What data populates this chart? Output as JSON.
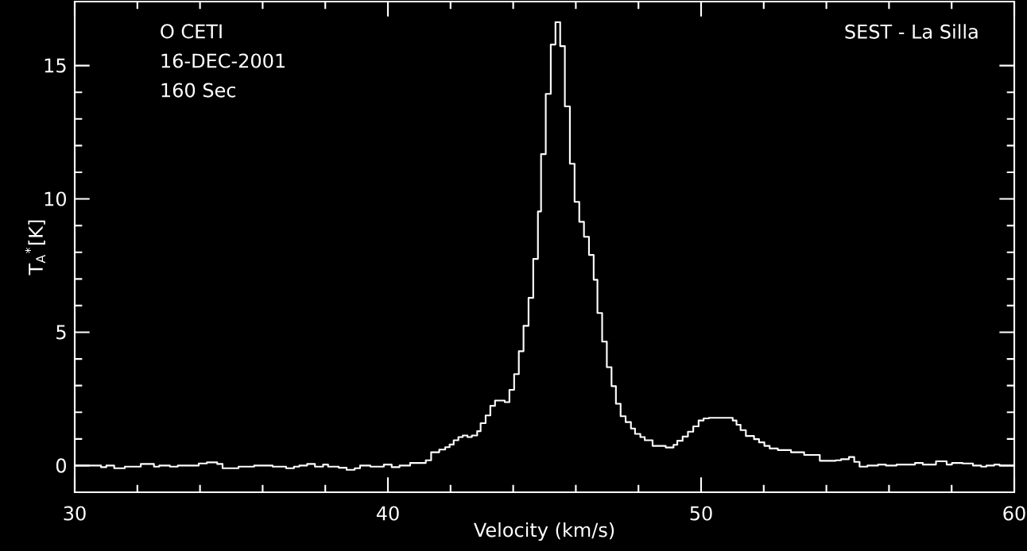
{
  "chart_data": {
    "type": "step",
    "xlabel": "Velocity (km/s)",
    "ylabel": "T$_{A}$$^{*}$[K]",
    "annotations": [
      "O CETI",
      "16-DEC-2001",
      "160 Sec",
      "SEST - La Silla"
    ],
    "xlim": [
      30,
      60
    ],
    "ylim": [
      -1,
      17.4
    ],
    "xticks": [
      30,
      40,
      50,
      60
    ],
    "yticks": [
      0,
      5,
      10,
      15
    ],
    "series": [
      {
        "color": "#ffffff",
        "x": [
          30.0,
          30.84,
          31.01,
          31.26,
          31.6,
          32.11,
          32.53,
          32.7,
          33.04,
          33.29,
          33.96,
          34.22,
          34.55,
          34.72,
          35.23,
          35.73,
          36.32,
          36.75,
          37.0,
          37.17,
          37.42,
          37.67,
          37.93,
          38.09,
          38.43,
          38.68,
          38.94,
          39.11,
          39.44,
          39.87,
          40.12,
          40.37,
          40.71,
          41.21,
          41.38,
          41.64,
          41.83,
          41.97,
          42.1,
          42.25,
          42.39,
          42.54,
          42.68,
          42.85,
          42.96,
          43.12,
          43.27,
          43.42,
          43.73,
          43.88,
          44.03,
          44.18,
          44.33,
          44.49,
          44.64,
          44.79,
          44.89,
          45.04,
          45.2,
          45.35,
          45.5,
          45.65,
          45.81,
          45.96,
          46.11,
          46.26,
          46.42,
          46.57,
          46.69,
          46.84,
          46.99,
          47.14,
          47.28,
          47.43,
          47.59,
          47.76,
          47.89,
          48.06,
          48.2,
          48.45,
          48.87,
          49.12,
          49.24,
          49.41,
          49.58,
          49.75,
          49.92,
          50.08,
          50.25,
          51.01,
          51.13,
          51.26,
          51.43,
          51.69,
          51.85,
          52.02,
          52.19,
          52.45,
          52.87,
          53.29,
          53.79,
          54.3,
          54.47,
          54.72,
          54.89,
          55.06,
          55.31,
          55.65,
          55.9,
          56.24,
          56.83,
          57.08,
          57.5,
          57.84,
          58.01,
          58.35,
          58.68,
          58.94,
          59.11,
          59.36,
          59.53,
          60.0
        ],
        "values": [
          0.0,
          -0.06,
          0.0,
          -0.1,
          -0.04,
          0.06,
          -0.04,
          0.0,
          -0.04,
          0.0,
          0.08,
          0.12,
          0.06,
          -0.1,
          -0.04,
          0.0,
          -0.04,
          -0.1,
          -0.04,
          0.0,
          0.06,
          -0.04,
          0.04,
          -0.04,
          -0.08,
          -0.16,
          -0.1,
          0.0,
          -0.04,
          0.04,
          -0.06,
          0.0,
          0.1,
          0.2,
          0.5,
          0.6,
          0.69,
          0.79,
          0.95,
          1.07,
          1.13,
          1.07,
          1.13,
          1.29,
          1.59,
          1.88,
          2.24,
          2.44,
          2.38,
          2.84,
          3.43,
          4.29,
          5.24,
          6.29,
          7.75,
          9.53,
          11.68,
          13.94,
          15.79,
          16.63,
          15.73,
          13.47,
          11.32,
          9.89,
          9.14,
          8.58,
          7.9,
          6.97,
          5.72,
          4.65,
          3.69,
          2.98,
          2.32,
          1.85,
          1.63,
          1.39,
          1.19,
          1.07,
          0.95,
          0.74,
          0.68,
          0.78,
          0.93,
          1.09,
          1.27,
          1.47,
          1.69,
          1.77,
          1.79,
          1.69,
          1.53,
          1.33,
          1.11,
          0.99,
          0.87,
          0.74,
          0.64,
          0.58,
          0.5,
          0.4,
          0.18,
          0.2,
          0.24,
          0.32,
          0.14,
          -0.04,
          0.0,
          0.04,
          0.0,
          0.04,
          0.1,
          0.04,
          0.16,
          0.04,
          0.1,
          0.08,
          0.0,
          -0.04,
          0.0,
          0.04,
          0.0,
          0.0
        ]
      }
    ]
  }
}
